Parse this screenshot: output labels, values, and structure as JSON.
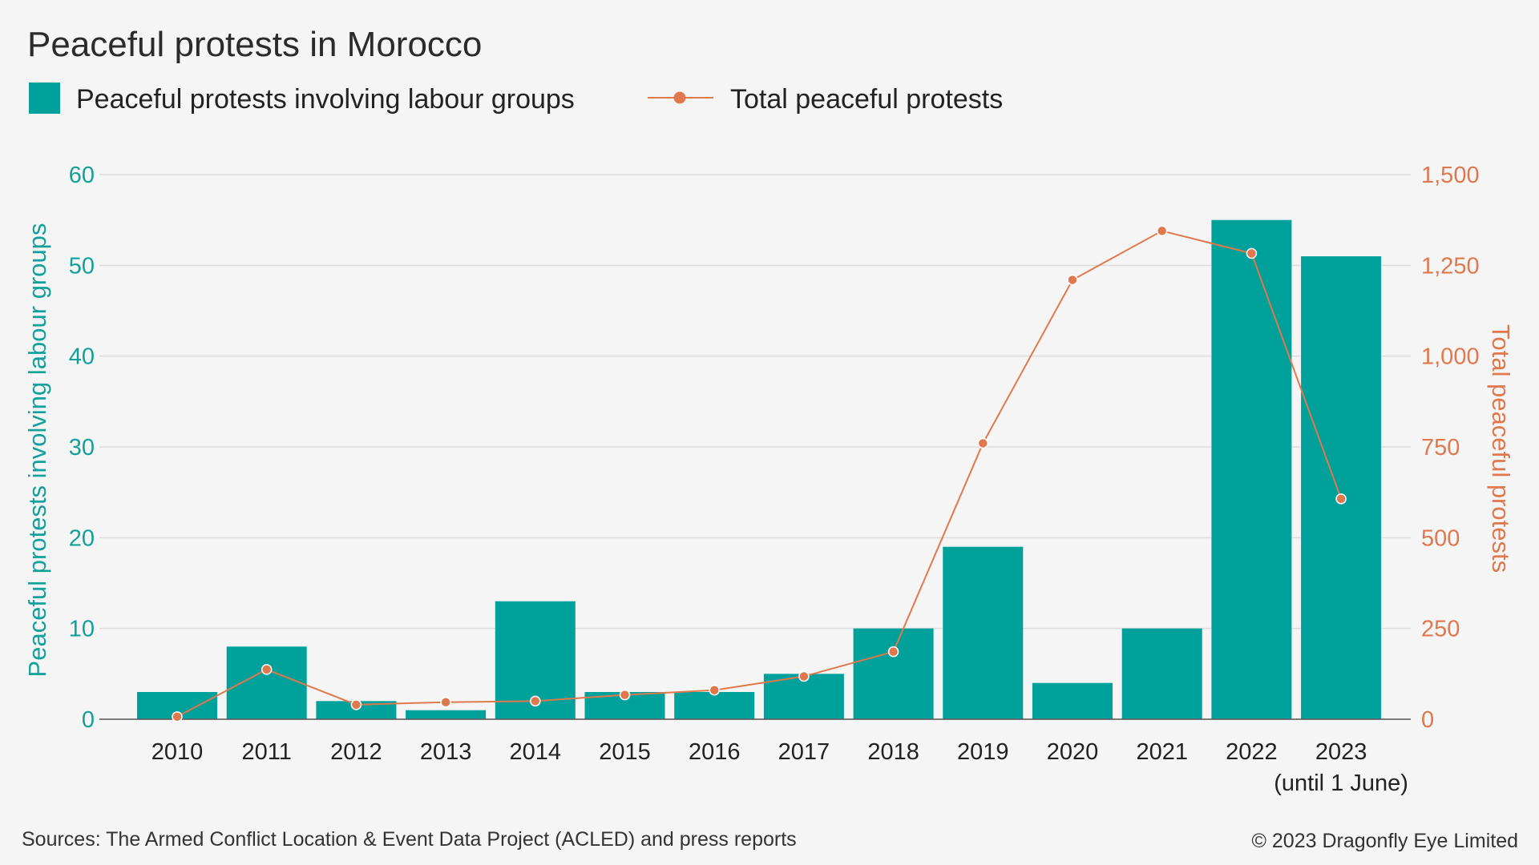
{
  "chart_data": {
    "type": "bar",
    "title": "Peaceful protests in Morocco",
    "categories": [
      "2010",
      "2011",
      "2012",
      "2013",
      "2014",
      "2015",
      "2016",
      "2017",
      "2018",
      "2019",
      "2020",
      "2021",
      "2022",
      "2023"
    ],
    "category_sublabels": [
      "",
      "",
      "",
      "",
      "",
      "",
      "",
      "",
      "",
      "",
      "",
      "",
      "",
      "(until 1 June)"
    ],
    "series": [
      {
        "name": "Peaceful protests involving labour groups",
        "type": "bar",
        "axis": "left",
        "color": "#00a19a",
        "values": [
          3,
          8,
          2,
          1,
          13,
          3,
          3,
          5,
          10,
          19,
          4,
          10,
          55,
          51
        ]
      },
      {
        "name": "Total peaceful protests",
        "type": "line",
        "axis": "right",
        "color": "#e0784e",
        "values": [
          7,
          137,
          40,
          47,
          50,
          67,
          80,
          118,
          186,
          760,
          1210,
          1345,
          1283,
          607
        ]
      }
    ],
    "ylabel": "Peaceful protests involving labour groups",
    "ylabel_right": "Total peaceful protests",
    "ylim": [
      0,
      60
    ],
    "ylim_right": [
      0,
      1500
    ],
    "yticks_left": [
      "0",
      "10",
      "20",
      "30",
      "40",
      "50",
      "60"
    ],
    "yticks_right": [
      "0",
      "250",
      "500",
      "750",
      "1,000",
      "1,250",
      "1,500"
    ],
    "grid": true,
    "legend_position": "top-left"
  },
  "footer": {
    "sources": "Sources: The Armed Conflict Location & Event Data Project (ACLED) and press reports",
    "copyright": "© 2023 Dragonfly Eye Limited"
  }
}
